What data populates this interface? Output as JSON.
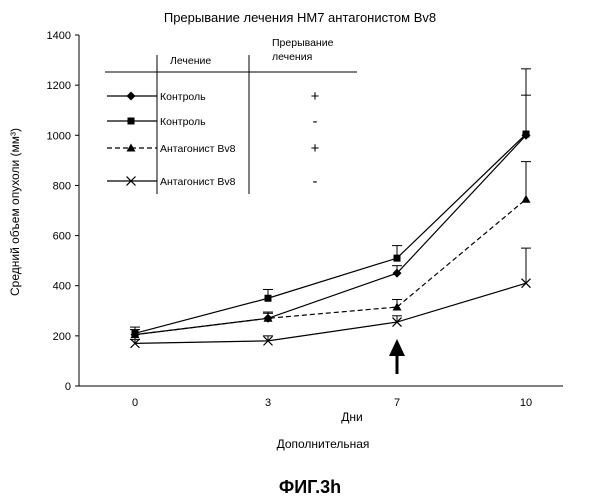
{
  "chart_data": {
    "type": "line",
    "title": "Прерывание лечения НМ7 антагонистом Bv8",
    "xlabel": "Дни",
    "xlabel2": "Дополнительная",
    "ylabel": "Средний объем опухоли (мм³)",
    "ylim": [
      0,
      1400
    ],
    "yticks": [
      0,
      200,
      400,
      600,
      800,
      1000,
      1200,
      1400
    ],
    "categories": [
      "0",
      "3",
      "7",
      "10"
    ],
    "grid": false,
    "legend": {
      "position": "top-left",
      "header_treatment": "Лечение",
      "header_interruption_line1": "Прерывание",
      "header_interruption_line2": "лечения"
    },
    "series": [
      {
        "name": "Контроль",
        "interruption": "+",
        "marker": "diamond",
        "dash": false,
        "values": [
          205,
          270,
          450,
          1000
        ],
        "errors": [
          0,
          20,
          30,
          160
        ]
      },
      {
        "name": "Контроль",
        "interruption": "-",
        "marker": "square",
        "dash": false,
        "values": [
          210,
          350,
          510,
          1005
        ],
        "errors": [
          25,
          35,
          50,
          260
        ]
      },
      {
        "name": "Антагонист Bv8",
        "interruption": "+",
        "marker": "triangle",
        "dash": true,
        "values": [
          205,
          270,
          315,
          745
        ],
        "errors": [
          20,
          25,
          30,
          150
        ]
      },
      {
        "name": "Антагонист Bv8",
        "interruption": "-",
        "marker": "x",
        "dash": false,
        "values": [
          170,
          180,
          255,
          410
        ],
        "errors": [
          15,
          20,
          25,
          140
        ]
      }
    ],
    "annotations": [
      "arrow at day 7"
    ]
  },
  "figure_label": "ФИГ.3h"
}
